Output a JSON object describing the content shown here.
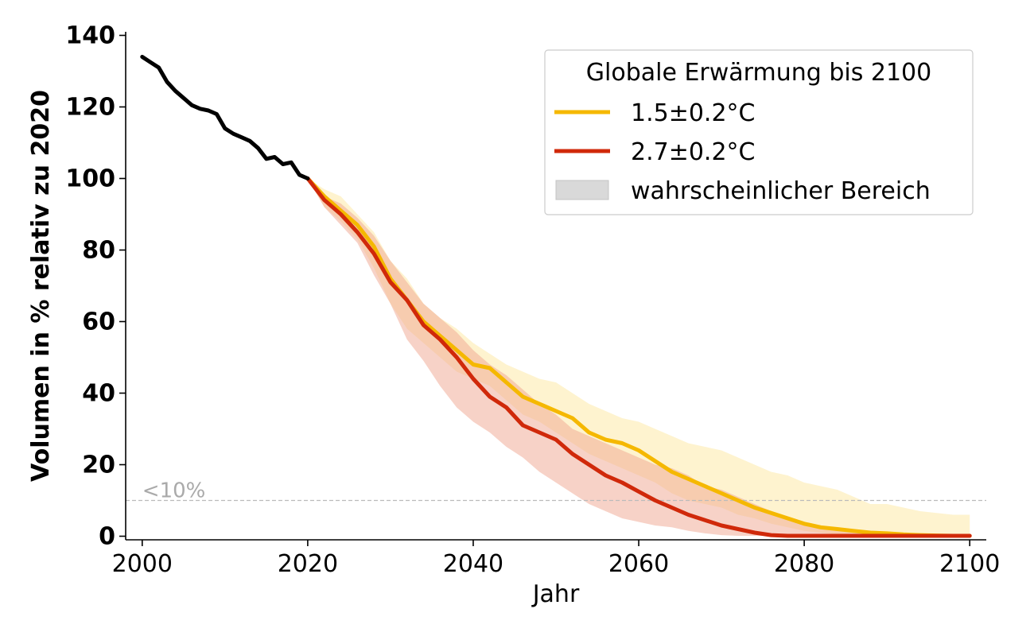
{
  "chart_data": {
    "type": "line",
    "title": "",
    "xlabel": "Jahr",
    "ylabel": "Volumen in % relativ zu 2020",
    "xlim": [
      1998,
      2102
    ],
    "ylim": [
      -1,
      141
    ],
    "x_ticks": [
      2000,
      2020,
      2040,
      2060,
      2080,
      2100
    ],
    "y_ticks": [
      0,
      20,
      40,
      60,
      80,
      100,
      120,
      140
    ],
    "grid": false,
    "reference_line": {
      "y": 10,
      "label": "<10%",
      "color": "#bbbbbb"
    },
    "historical": {
      "color": "#000000",
      "x": [
        2000,
        2001,
        2002,
        2003,
        2004,
        2005,
        2006,
        2007,
        2008,
        2009,
        2010,
        2011,
        2012,
        2013,
        2014,
        2015,
        2016,
        2017,
        2018,
        2019,
        2020
      ],
      "y": [
        134,
        132.5,
        131,
        127,
        124.5,
        122.5,
        120.5,
        119.5,
        119,
        118,
        114,
        112.5,
        111.5,
        110.5,
        108.5,
        105.5,
        106,
        104,
        104.5,
        101,
        100
      ]
    },
    "legend": {
      "title": "Globale Erwärmung bis 2100",
      "position": "top-right",
      "entries": [
        {
          "label": "1.5±0.2°C",
          "color": "#f5b800",
          "kind": "line"
        },
        {
          "label": "2.7±0.2°C",
          "color": "#d0290a",
          "kind": "line"
        },
        {
          "label": "wahrscheinlicher Bereich",
          "color": "#d9d9d9",
          "kind": "patch"
        }
      ]
    },
    "series": [
      {
        "name": "1.5±0.2°C",
        "color": "#f5b800",
        "band_color": "#fde9a8",
        "x": [
          2020,
          2022,
          2024,
          2026,
          2028,
          2030,
          2032,
          2034,
          2036,
          2038,
          2040,
          2042,
          2044,
          2046,
          2048,
          2050,
          2052,
          2054,
          2056,
          2058,
          2060,
          2062,
          2064,
          2066,
          2068,
          2070,
          2072,
          2074,
          2076,
          2078,
          2080,
          2082,
          2084,
          2086,
          2088,
          2090,
          2092,
          2094,
          2096,
          2098,
          2100
        ],
        "y": [
          100,
          95,
          91,
          87,
          81,
          72,
          66,
          60,
          56,
          52,
          48,
          47,
          43,
          39,
          37,
          35,
          33,
          29,
          27,
          26,
          24,
          21,
          18,
          16,
          14,
          12,
          10,
          8,
          6.5,
          5,
          3.5,
          2.5,
          2,
          1.5,
          1,
          0.8,
          0.5,
          0.3,
          0.2,
          0.1,
          0.1
        ],
        "lower": [
          100,
          92,
          88,
          83,
          75,
          65,
          58,
          54,
          50,
          46,
          44,
          42,
          38,
          34,
          32,
          29,
          26,
          23,
          21,
          19,
          17,
          15,
          12,
          10,
          9,
          8,
          6,
          5,
          3.5,
          2.5,
          1.5,
          1,
          0.5,
          0.3,
          0.2,
          0.1,
          0.1,
          0.1,
          0.1,
          0.1,
          0.1
        ],
        "upper": [
          100,
          97,
          95,
          90,
          85,
          77,
          72,
          65,
          61,
          58,
          54,
          51,
          48,
          46,
          44,
          43,
          40,
          37,
          35,
          33,
          32,
          30,
          28,
          26,
          25,
          24,
          22,
          20,
          18,
          17,
          15,
          14,
          13,
          11,
          9,
          9,
          8,
          7,
          6.5,
          6,
          6
        ]
      },
      {
        "name": "2.7±0.2°C",
        "color": "#d0290a",
        "band_color": "#f0a58f",
        "x": [
          2020,
          2022,
          2024,
          2026,
          2028,
          2030,
          2032,
          2034,
          2036,
          2038,
          2040,
          2042,
          2044,
          2046,
          2048,
          2050,
          2052,
          2054,
          2056,
          2058,
          2060,
          2062,
          2064,
          2066,
          2068,
          2070,
          2072,
          2074,
          2076,
          2078,
          2080,
          2082,
          2084,
          2086,
          2088,
          2090,
          2092,
          2094,
          2096,
          2098,
          2100
        ],
        "y": [
          100,
          94,
          90,
          85,
          79,
          71,
          66,
          59,
          55,
          50,
          44,
          39,
          36,
          31,
          29,
          27,
          23,
          20,
          17,
          15,
          12.5,
          10,
          8,
          6,
          4.5,
          3,
          2,
          1,
          0.3,
          0.1,
          0.1,
          0.1,
          0.1,
          0.1,
          0.1,
          0.1,
          0.1,
          0.1,
          0.1,
          0.1,
          0.1
        ],
        "lower": [
          100,
          92,
          87,
          82,
          73,
          65,
          55,
          49,
          42,
          36,
          32,
          29,
          25,
          22,
          18,
          15,
          12,
          9,
          7,
          5,
          4,
          3,
          2.5,
          1.5,
          0.8,
          0.3,
          0.1,
          0.1,
          0.1,
          0.1,
          0.1,
          0.1,
          0.1,
          0.1,
          0.1,
          0.1,
          0.1,
          0.1,
          0.1,
          0.1,
          0.1
        ],
        "upper": [
          100,
          95,
          93,
          89,
          84,
          77,
          71,
          65,
          61,
          57,
          52,
          48,
          45,
          41,
          37,
          34,
          30,
          28,
          26,
          24,
          22,
          20,
          19,
          17,
          14,
          13,
          11,
          9,
          7,
          5,
          3.5,
          2.5,
          1.5,
          1,
          0.5,
          0.2,
          0.1,
          0.1,
          0.1,
          0.1,
          0.1
        ]
      }
    ]
  }
}
